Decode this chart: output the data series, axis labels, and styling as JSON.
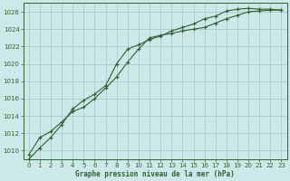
{
  "title": "Graphe pression niveau de la mer (hPa)",
  "background_color": "#cce8e8",
  "grid_color": "#aacccc",
  "line_color": "#2d6230",
  "xlim": [
    -0.5,
    23.5
  ],
  "ylim": [
    1009,
    1027
  ],
  "yticks": [
    1010,
    1012,
    1014,
    1016,
    1018,
    1020,
    1022,
    1024,
    1026
  ],
  "xticks": [
    0,
    1,
    2,
    3,
    4,
    5,
    6,
    7,
    8,
    9,
    10,
    11,
    12,
    13,
    14,
    15,
    16,
    17,
    18,
    19,
    20,
    21,
    22,
    23
  ],
  "series1_x": [
    0,
    1,
    2,
    3,
    4,
    5,
    6,
    7,
    8,
    9,
    10,
    11,
    12,
    13,
    14,
    15,
    16,
    17,
    18,
    19,
    20,
    21,
    22,
    23
  ],
  "series1_y": [
    1009.5,
    1011.5,
    1012.2,
    1013.3,
    1014.5,
    1015.0,
    1016.0,
    1017.2,
    1018.5,
    1020.2,
    1021.7,
    1023.0,
    1023.3,
    1023.5,
    1023.8,
    1024.0,
    1024.2,
    1024.7,
    1025.2,
    1025.6,
    1026.0,
    1026.1,
    1026.2,
    1026.2
  ],
  "series2_x": [
    0,
    1,
    2,
    3,
    4,
    5,
    6,
    7,
    8,
    9,
    10,
    11,
    12,
    13,
    14,
    15,
    16,
    17,
    18,
    19,
    20,
    21,
    22,
    23
  ],
  "series2_y": [
    1009.0,
    1010.3,
    1011.5,
    1013.0,
    1014.8,
    1015.8,
    1016.5,
    1017.5,
    1020.0,
    1021.7,
    1022.2,
    1022.8,
    1023.2,
    1023.8,
    1024.2,
    1024.6,
    1025.2,
    1025.5,
    1026.1,
    1026.3,
    1026.4,
    1026.3,
    1026.3,
    1026.2
  ]
}
